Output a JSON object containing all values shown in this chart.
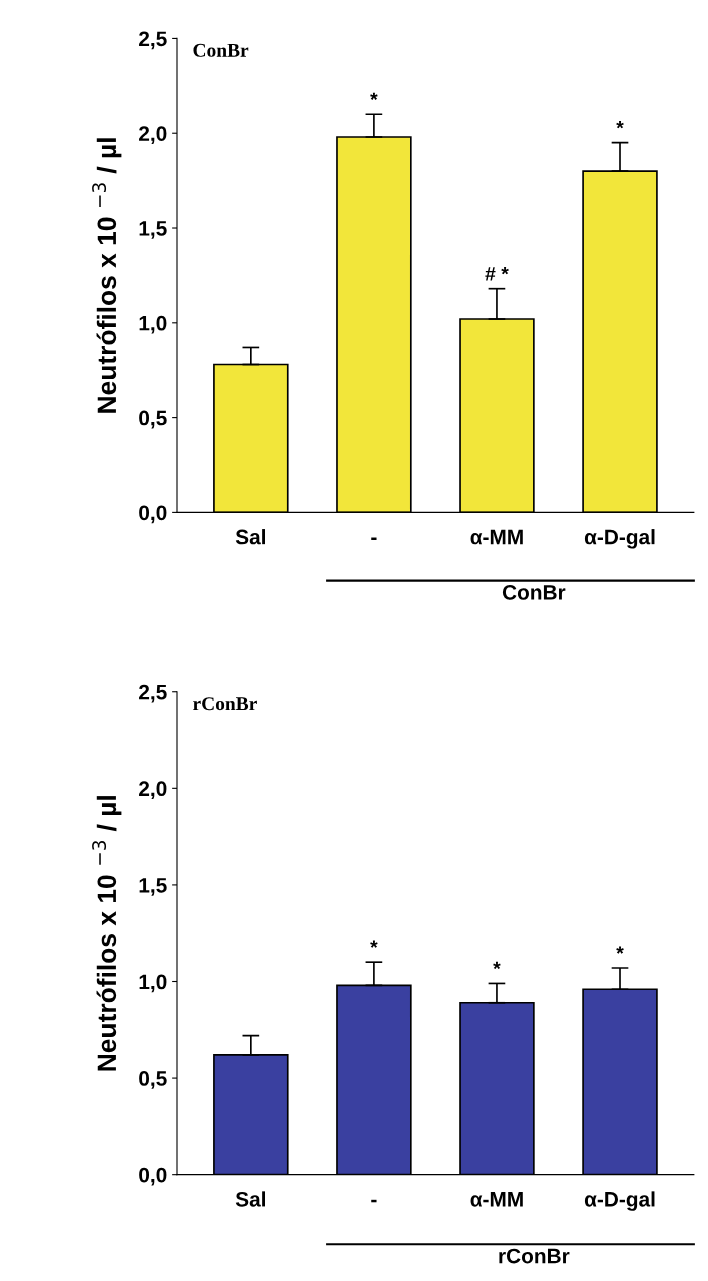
{
  "chart_data": [
    {
      "type": "bar",
      "title": "ConBr",
      "ylabel": "Neutrófilos x 10 $^{−3}$ / µl",
      "categories": [
        "Sal",
        "-",
        "α-MM",
        "α-D-gal"
      ],
      "values": [
        0.78,
        1.98,
        1.02,
        1.8
      ],
      "errors": [
        0.09,
        0.12,
        0.16,
        0.15
      ],
      "color": "#f2e63a",
      "ylim": [
        0,
        2.5
      ],
      "yticks": [
        {
          "value": 0,
          "label": "0,0"
        },
        {
          "value": 0.5,
          "label": "0,5"
        },
        {
          "value": 1,
          "label": "1,0"
        },
        {
          "value": 1.5,
          "label": "1,5"
        },
        {
          "value": 2,
          "label": "2,0"
        },
        {
          "value": 2.5,
          "label": "2,5"
        }
      ],
      "grid": false,
      "annotations": [
        {
          "text": "*",
          "x": "-",
          "y": 2.1
        },
        {
          "text": "# *",
          "x": "α-MM",
          "y": 1.18
        },
        {
          "text": "*",
          "x": "α-D-gal",
          "y": 1.95
        },
        "ConBr"
      ]
    },
    {
      "type": "bar",
      "title": "rConBr",
      "ylabel": "Neutrófilos x 10 $^{−3}$ / µl",
      "categories": [
        "Sal",
        "-",
        "α-MM",
        "α-D-gal"
      ],
      "values": [
        0.62,
        0.98,
        0.89,
        0.96
      ],
      "errors": [
        0.1,
        0.12,
        0.1,
        0.11
      ],
      "color": "#3a40a0",
      "ylim": [
        0,
        2.5
      ],
      "yticks": [
        {
          "value": 0,
          "label": "0,0"
        },
        {
          "value": 0.5,
          "label": "0,5"
        },
        {
          "value": 1,
          "label": "1,0"
        },
        {
          "value": 1.5,
          "label": "1,5"
        },
        {
          "value": 2,
          "label": "2,0"
        },
        {
          "value": 2.5,
          "label": "2,5"
        }
      ],
      "grid": false,
      "annotations": [
        {
          "text": "*",
          "x": "-",
          "y": 1.1
        },
        {
          "text": "*",
          "x": "α-MM",
          "y": 0.99
        },
        {
          "text": "*",
          "x": "α-D-gal",
          "y": 1.07
        },
        "rConBr"
      ]
    }
  ]
}
